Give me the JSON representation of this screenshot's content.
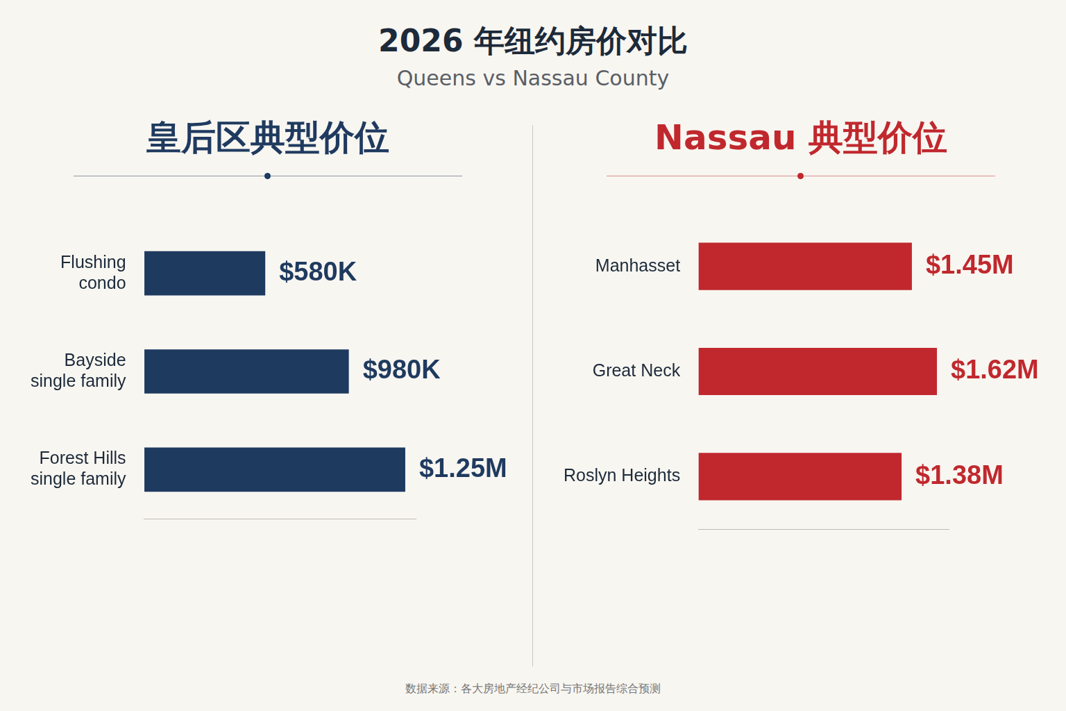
{
  "header": {
    "title": "2026 年纽约房价对比",
    "subtitle": "Queens vs Nassau County"
  },
  "chart_data": [
    {
      "type": "bar",
      "title": "皇后区典型价位",
      "orientation": "horizontal",
      "categories": [
        [
          "Flushing",
          "condo"
        ],
        [
          "Bayside",
          "single family"
        ],
        [
          "Forest Hills",
          "single family"
        ]
      ],
      "values": [
        580000,
        980000,
        1250000
      ],
      "value_labels": [
        "$580K",
        "$980K",
        "$1.25M"
      ],
      "color": "#1f3a5f",
      "xlim": [
        0,
        1300000
      ],
      "grid": false,
      "tick_labels": "y",
      "data_labels": true
    },
    {
      "type": "bar",
      "title": "Nassau 典型价位",
      "orientation": "horizontal",
      "categories": [
        "Manhasset",
        "Great Neck",
        "Roslyn Heights"
      ],
      "values": [
        1450000,
        1620000,
        1380000
      ],
      "value_labels": [
        "$1.45M",
        "$1.62M",
        "$1.38M"
      ],
      "color": "#c0282d",
      "xlim": [
        0,
        1700000
      ],
      "grid": false,
      "tick_labels": "y",
      "data_labels": true
    }
  ],
  "source": "数据来源：各大房地产经纪公司与市场报告综合预测"
}
